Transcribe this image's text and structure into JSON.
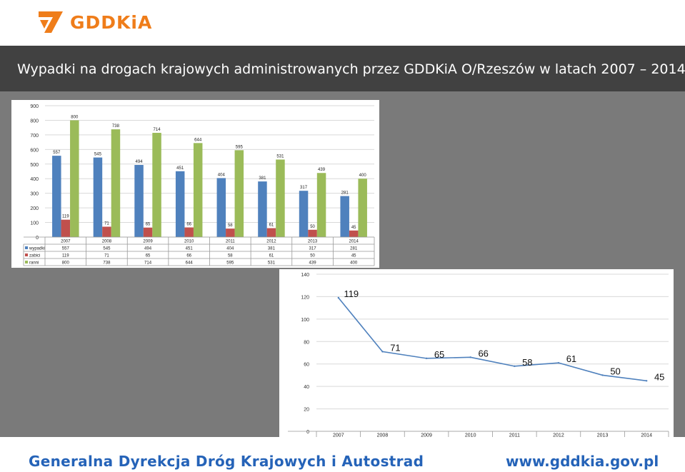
{
  "header": {
    "logo_text": "GDDKiA",
    "title": "Wypadki na drogach krajowych administrowanych przez GDDKiA O/Rzeszów w latach 2007 – 2014"
  },
  "colors": {
    "accent": "#ef7d1a",
    "brand_blue": "#2563b8",
    "series": [
      "#4f81bd",
      "#c0504d",
      "#9bbb59"
    ],
    "line": "#4f81bd"
  },
  "footer": {
    "left": "Generalna Dyrekcja Dróg Krajowych i Autostrad",
    "right": "www.gddkia.gov.pl"
  },
  "chart_data": [
    {
      "type": "bar",
      "categories": [
        "2007",
        "2008",
        "2009",
        "2010",
        "2011",
        "2012",
        "2013",
        "2014"
      ],
      "series": [
        {
          "name": "wypadki",
          "values": [
            557,
            545,
            494,
            451,
            404,
            381,
            317,
            281
          ]
        },
        {
          "name": "zabici",
          "values": [
            119,
            71,
            65,
            66,
            58,
            61,
            50,
            45
          ]
        },
        {
          "name": "ranni",
          "values": [
            800,
            738,
            714,
            644,
            595,
            531,
            439,
            400
          ]
        }
      ],
      "yticks": [
        "0",
        "100",
        "200",
        "300",
        "400",
        "500",
        "600",
        "700",
        "800",
        "900"
      ],
      "ylim": [
        0,
        900
      ],
      "grid": true,
      "legend": "data-table-below"
    },
    {
      "type": "line",
      "categories": [
        "2007",
        "2008",
        "2009",
        "2010",
        "2011",
        "2012",
        "2013",
        "2014"
      ],
      "series": [
        {
          "name": "zabici",
          "values": [
            119,
            71,
            65,
            66,
            58,
            61,
            50,
            45
          ]
        }
      ],
      "yticks": [
        "0",
        "20",
        "40",
        "60",
        "80",
        "100",
        "120",
        "140"
      ],
      "ylim": [
        0,
        140
      ],
      "grid": true,
      "legend": "data-table-below"
    }
  ]
}
